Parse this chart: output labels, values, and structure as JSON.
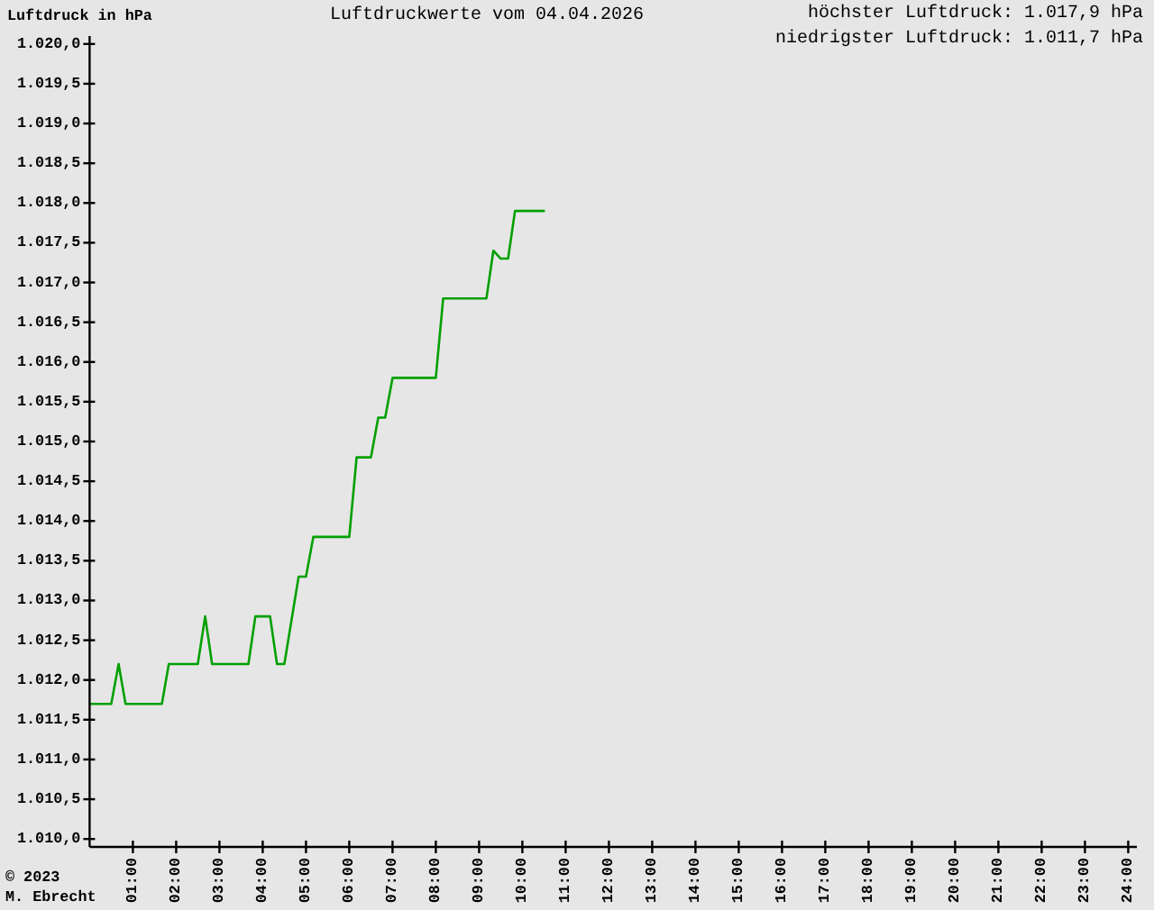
{
  "chart_data": {
    "type": "line",
    "title": "Luftdruckwerte vom 04.04.2026",
    "ylabel": "Luftdruck in hPa",
    "annotations": [
      "höchster Luftdruck: 1.017,9 hPa",
      "niedrigster Luftdruck: 1.011,7 hPa",
      "© 2023",
      "M. Ebrecht"
    ],
    "x": [
      0,
      0.5,
      0.67,
      0.83,
      1.67,
      1.83,
      2.5,
      2.67,
      2.83,
      3.67,
      3.83,
      4.17,
      4.33,
      4.5,
      4.83,
      5,
      5.17,
      6,
      6.17,
      6.5,
      6.67,
      6.83,
      7,
      8,
      8.17,
      9.17,
      9.33,
      9.5,
      9.67,
      9.83,
      10.5
    ],
    "series": [
      {
        "color": "#00a000",
        "values": [
          1011.7,
          1011.7,
          1012.2,
          1011.7,
          1011.7,
          1012.2,
          1012.2,
          1012.8,
          1012.2,
          1012.2,
          1012.8,
          1012.8,
          1012.2,
          1012.2,
          1013.3,
          1013.3,
          1013.8,
          1013.8,
          1014.8,
          1014.8,
          1015.3,
          1015.3,
          1015.8,
          1015.8,
          1016.8,
          1016.8,
          1017.4,
          1017.3,
          1017.3,
          1017.9,
          1017.9
        ]
      }
    ],
    "xlim": [
      0,
      24.2
    ],
    "xticks": [
      {
        "value": 1,
        "label": "01:00"
      },
      {
        "value": 2,
        "label": "02:00"
      },
      {
        "value": 3,
        "label": "03:00"
      },
      {
        "value": 4,
        "label": "04:00"
      },
      {
        "value": 5,
        "label": "05:00"
      },
      {
        "value": 6,
        "label": "06:00"
      },
      {
        "value": 7,
        "label": "07:00"
      },
      {
        "value": 8,
        "label": "08:00"
      },
      {
        "value": 9,
        "label": "09:00"
      },
      {
        "value": 10,
        "label": "10:00"
      },
      {
        "value": 11,
        "label": "11:00"
      },
      {
        "value": 12,
        "label": "12:00"
      },
      {
        "value": 13,
        "label": "13:00"
      },
      {
        "value": 14,
        "label": "14:00"
      },
      {
        "value": 15,
        "label": "15:00"
      },
      {
        "value": 16,
        "label": "16:00"
      },
      {
        "value": 17,
        "label": "17:00"
      },
      {
        "value": 18,
        "label": "18:00"
      },
      {
        "value": 19,
        "label": "19:00"
      },
      {
        "value": 20,
        "label": "20:00"
      },
      {
        "value": 21,
        "label": "21:00"
      },
      {
        "value": 22,
        "label": "22:00"
      },
      {
        "value": 23,
        "label": "23:00"
      },
      {
        "value": 24,
        "label": "24:00"
      }
    ],
    "ylim": [
      1009.9,
      1020.1
    ],
    "yticks": [
      {
        "value": 1010,
        "label": "1.010,0"
      },
      {
        "value": 1010.5,
        "label": "1.010,5"
      },
      {
        "value": 1011,
        "label": "1.011,0"
      },
      {
        "value": 1011.5,
        "label": "1.011,5"
      },
      {
        "value": 1012,
        "label": "1.012,0"
      },
      {
        "value": 1012.5,
        "label": "1.012,5"
      },
      {
        "value": 1013,
        "label": "1.013,0"
      },
      {
        "value": 1013.5,
        "label": "1.013,5"
      },
      {
        "value": 1014,
        "label": "1.014,0"
      },
      {
        "value": 1014.5,
        "label": "1.014,5"
      },
      {
        "value": 1015,
        "label": "1.015,0"
      },
      {
        "value": 1015.5,
        "label": "1.015,5"
      },
      {
        "value": 1016,
        "label": "1.016,0"
      },
      {
        "value": 1016.5,
        "label": "1.016,5"
      },
      {
        "value": 1017,
        "label": "1.017,0"
      },
      {
        "value": 1017.5,
        "label": "1.017,5"
      },
      {
        "value": 1018,
        "label": "1.018,0"
      },
      {
        "value": 1018.5,
        "label": "1.018,5"
      },
      {
        "value": 1019,
        "label": "1.019,0"
      },
      {
        "value": 1019.5,
        "label": "1.019,5"
      },
      {
        "value": 1020,
        "label": "1.020,0"
      }
    ],
    "line_style": "solid"
  }
}
